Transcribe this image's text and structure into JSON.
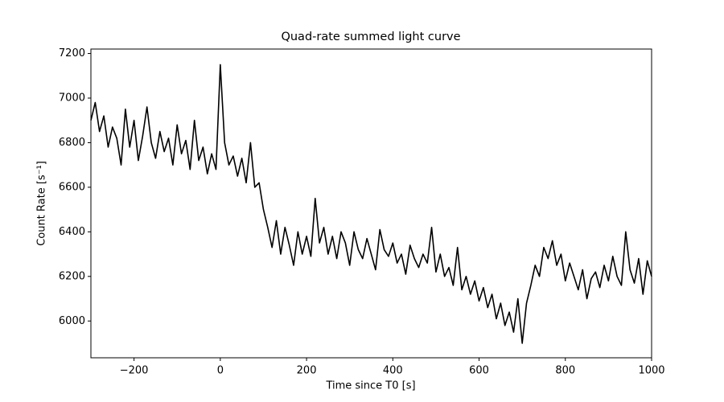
{
  "chart_data": {
    "type": "line",
    "title": "Quad-rate summed light curve",
    "x_label": "Time since T0 [s]",
    "y_label": "Count Rate [s⁻¹]",
    "color": "#000000",
    "xlim": [
      -300,
      1000
    ],
    "ylim": [
      5835,
      7220
    ],
    "xticks": [
      {
        "value": -200,
        "label": "−200"
      },
      0,
      200,
      400,
      600,
      800,
      1000
    ],
    "yticks": [
      6000,
      6200,
      6400,
      6600,
      6800,
      7000,
      7200
    ],
    "x": [
      -300,
      -290,
      -280,
      -270,
      -260,
      -250,
      -240,
      -230,
      -220,
      -210,
      -200,
      -190,
      -180,
      -170,
      -160,
      -150,
      -140,
      -130,
      -120,
      -110,
      -100,
      -90,
      -80,
      -70,
      -60,
      -50,
      -40,
      -30,
      -20,
      -10,
      0,
      10,
      20,
      30,
      40,
      50,
      60,
      70,
      80,
      90,
      100,
      110,
      120,
      130,
      140,
      150,
      160,
      170,
      180,
      190,
      200,
      210,
      220,
      230,
      240,
      250,
      260,
      270,
      280,
      290,
      300,
      310,
      320,
      330,
      340,
      350,
      360,
      370,
      380,
      390,
      400,
      410,
      420,
      430,
      440,
      450,
      460,
      470,
      480,
      490,
      500,
      510,
      520,
      530,
      540,
      550,
      560,
      570,
      580,
      590,
      600,
      610,
      620,
      630,
      640,
      650,
      660,
      670,
      680,
      690,
      700,
      710,
      720,
      730,
      740,
      750,
      760,
      770,
      780,
      790,
      800,
      810,
      820,
      830,
      840,
      850,
      860,
      870,
      880,
      890,
      900,
      910,
      920,
      930,
      940,
      950,
      960,
      970,
      980,
      990,
      1000
    ],
    "values": [
      6900,
      6980,
      6850,
      6920,
      6780,
      6870,
      6820,
      6700,
      6950,
      6780,
      6900,
      6720,
      6830,
      6960,
      6800,
      6730,
      6850,
      6760,
      6820,
      6700,
      6880,
      6750,
      6810,
      6680,
      6900,
      6720,
      6780,
      6660,
      6750,
      6680,
      7150,
      6800,
      6700,
      6740,
      6650,
      6730,
      6620,
      6800,
      6600,
      6620,
      6500,
      6420,
      6330,
      6450,
      6300,
      6420,
      6340,
      6250,
      6400,
      6300,
      6380,
      6290,
      6550,
      6350,
      6420,
      6300,
      6380,
      6280,
      6400,
      6350,
      6250,
      6400,
      6320,
      6280,
      6370,
      6300,
      6230,
      6410,
      6320,
      6290,
      6350,
      6260,
      6300,
      6210,
      6340,
      6280,
      6240,
      6300,
      6260,
      6420,
      6220,
      6300,
      6200,
      6240,
      6160,
      6330,
      6140,
      6200,
      6120,
      6180,
      6090,
      6150,
      6060,
      6120,
      6010,
      6080,
      5980,
      6040,
      5950,
      6100,
      5900,
      6080,
      6160,
      6250,
      6200,
      6330,
      6280,
      6360,
      6250,
      6300,
      6180,
      6260,
      6200,
      6140,
      6230,
      6100,
      6190,
      6220,
      6150,
      6250,
      6180,
      6290,
      6200,
      6160,
      6400,
      6230,
      6170,
      6280,
      6120,
      6270,
      6200
    ]
  }
}
